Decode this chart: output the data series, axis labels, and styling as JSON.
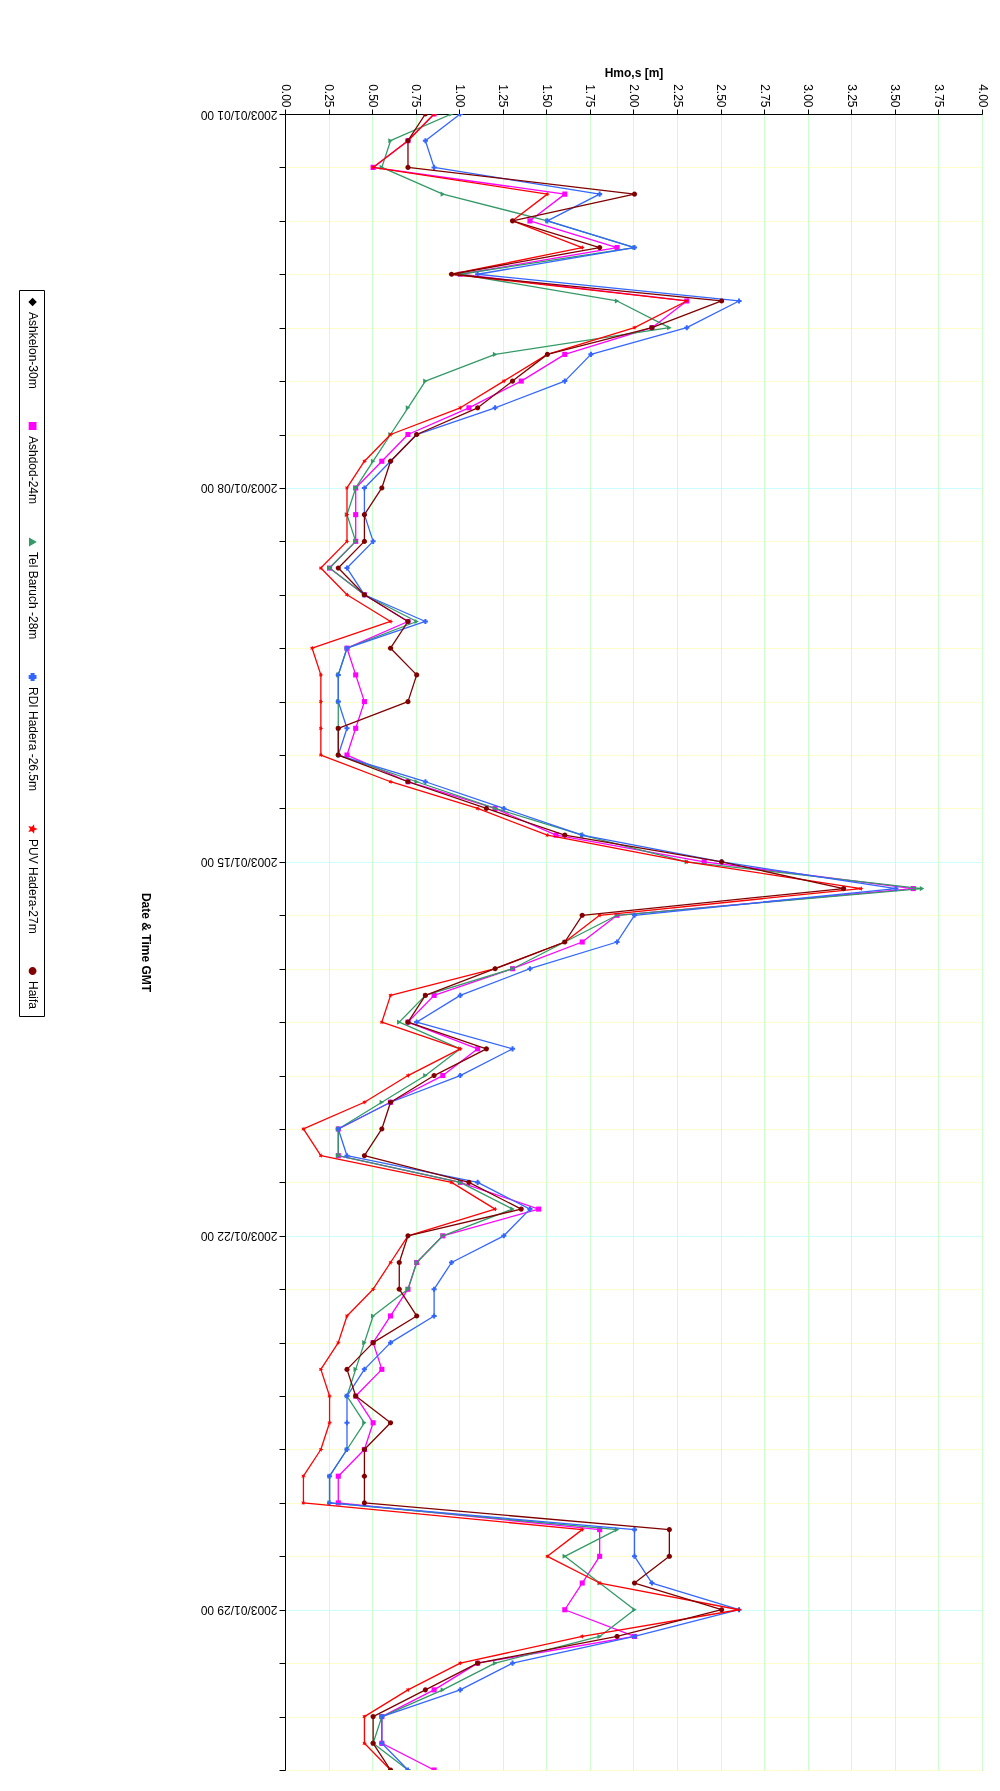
{
  "chart_data": {
    "type": "line",
    "orientation": "horizontal",
    "xlabel": "Hmo,s [m]",
    "ylabel": "Date & Time GMT",
    "x": [
      "2003-01-01T00:00",
      "2003-01-01T12:00",
      "2003-01-02T00:00",
      "2003-01-02T12:00",
      "2003-01-03T00:00",
      "2003-01-03T12:00",
      "2003-01-04T00:00",
      "2003-01-04T12:00",
      "2003-01-05T00:00",
      "2003-01-05T12:00",
      "2003-01-06T00:00",
      "2003-01-06T12:00",
      "2003-01-07T00:00",
      "2003-01-07T12:00",
      "2003-01-08T00:00",
      "2003-01-08T12:00",
      "2003-01-09T00:00",
      "2003-01-09T12:00",
      "2003-01-10T00:00",
      "2003-01-10T12:00",
      "2003-01-11T00:00",
      "2003-01-11T12:00",
      "2003-01-12T00:00",
      "2003-01-12T12:00",
      "2003-01-13T00:00",
      "2003-01-13T12:00",
      "2003-01-14T00:00",
      "2003-01-14T12:00",
      "2003-01-15T00:00",
      "2003-01-15T12:00",
      "2003-01-16T00:00",
      "2003-01-16T12:00",
      "2003-01-17T00:00",
      "2003-01-17T12:00",
      "2003-01-18T00:00",
      "2003-01-18T12:00",
      "2003-01-19T00:00",
      "2003-01-19T12:00",
      "2003-01-20T00:00",
      "2003-01-20T12:00",
      "2003-01-21T00:00",
      "2003-01-21T12:00",
      "2003-01-22T00:00",
      "2003-01-22T12:00",
      "2003-01-23T00:00",
      "2003-01-23T12:00",
      "2003-01-24T00:00",
      "2003-01-24T12:00",
      "2003-01-25T00:00",
      "2003-01-25T12:00",
      "2003-01-26T00:00",
      "2003-01-26T12:00",
      "2003-01-27T00:00",
      "2003-01-27T12:00",
      "2003-01-28T00:00",
      "2003-01-28T12:00",
      "2003-01-29T00:00",
      "2003-01-29T12:00",
      "2003-01-30T00:00",
      "2003-01-30T12:00",
      "2003-01-31T00:00",
      "2003-01-31T12:00",
      "2003-02-01T00:00"
    ],
    "series": [
      {
        "name": "Ashkelon-30m",
        "color": "#000000",
        "marker": "diamond",
        "values": [
          null,
          null,
          null,
          null,
          null,
          null,
          null,
          null,
          null,
          null,
          null,
          null,
          null,
          null,
          null,
          null,
          null,
          null,
          null,
          null,
          null,
          null,
          null,
          null,
          null,
          null,
          null,
          null,
          null,
          null,
          null,
          null,
          null,
          null,
          null,
          null,
          null,
          null,
          null,
          null,
          null,
          null,
          null,
          null,
          null,
          null,
          null,
          null,
          null,
          null,
          null,
          null,
          null,
          null,
          null,
          null,
          null,
          null,
          null,
          null,
          null,
          null,
          null
        ]
      },
      {
        "name": "Ashdod-24m",
        "color": "#ff00ff",
        "marker": "square",
        "values": [
          0.85,
          0.7,
          0.5,
          1.6,
          1.4,
          1.9,
          1.0,
          2.3,
          2.1,
          1.6,
          1.35,
          1.05,
          0.7,
          0.55,
          0.4,
          0.4,
          0.4,
          0.25,
          0.45,
          0.7,
          0.35,
          0.4,
          0.45,
          0.4,
          0.35,
          0.7,
          1.2,
          1.55,
          2.4,
          3.6,
          1.9,
          1.7,
          1.3,
          0.85,
          0.7,
          1.1,
          0.9,
          0.6,
          0.3,
          0.3,
          1.0,
          1.45,
          0.9,
          0.75,
          0.7,
          0.6,
          0.5,
          0.55,
          0.4,
          0.5,
          0.45,
          0.3,
          0.3,
          1.8,
          1.8,
          1.7,
          1.6,
          2.0,
          1.1,
          0.85,
          0.55,
          0.55,
          0.85
        ]
      },
      {
        "name": "Tel Baruch -28m",
        "color": "#339966",
        "marker": "triangle",
        "values": [
          0.95,
          0.6,
          0.55,
          0.9,
          1.5,
          2.0,
          1.0,
          1.9,
          2.2,
          1.2,
          0.8,
          0.7,
          0.6,
          0.5,
          0.4,
          0.35,
          0.4,
          0.25,
          0.45,
          0.75,
          0.35,
          0.3,
          0.3,
          0.3,
          0.3,
          0.75,
          1.2,
          1.7,
          2.3,
          3.65,
          1.9,
          1.6,
          1.3,
          0.8,
          0.65,
          1.0,
          0.8,
          0.55,
          0.3,
          0.3,
          1.0,
          1.3,
          0.9,
          0.75,
          0.7,
          0.5,
          0.45,
          0.4,
          0.35,
          0.45,
          0.35,
          0.25,
          0.25,
          1.9,
          1.6,
          1.8,
          2.0,
          1.8,
          1.2,
          0.9,
          0.55,
          0.5,
          0.7
        ]
      },
      {
        "name": "RDI Hadera -26.5m",
        "color": "#3366ff",
        "marker": "cross",
        "values": [
          1.0,
          0.8,
          0.85,
          1.8,
          1.5,
          2.0,
          1.1,
          2.6,
          2.3,
          1.75,
          1.6,
          1.2,
          0.75,
          0.6,
          0.45,
          0.45,
          0.5,
          0.35,
          0.45,
          0.8,
          0.35,
          0.3,
          0.3,
          0.35,
          0.3,
          0.8,
          1.25,
          1.7,
          2.5,
          3.5,
          2.0,
          1.9,
          1.4,
          1.0,
          0.75,
          1.3,
          1.0,
          0.6,
          0.3,
          0.35,
          1.1,
          1.4,
          1.25,
          0.95,
          0.85,
          0.85,
          0.6,
          0.45,
          0.35,
          0.35,
          0.35,
          0.25,
          0.25,
          2.0,
          2.0,
          2.1,
          2.6,
          2.0,
          1.3,
          1.0,
          0.55,
          0.55,
          0.7
        ]
      },
      {
        "name": "PUV Hadera-27m",
        "color": "#ff0000",
        "marker": "star",
        "values": [
          0.85,
          0.7,
          0.5,
          1.5,
          1.3,
          1.7,
          0.95,
          2.3,
          2.0,
          1.5,
          1.25,
          1.0,
          0.6,
          0.45,
          0.35,
          0.35,
          0.35,
          0.2,
          0.35,
          0.6,
          0.15,
          0.2,
          0.2,
          0.2,
          0.2,
          0.6,
          1.1,
          1.5,
          2.3,
          3.3,
          1.8,
          1.6,
          1.2,
          0.6,
          0.55,
          1.0,
          0.7,
          0.45,
          0.1,
          0.2,
          0.95,
          1.2,
          0.7,
          0.6,
          0.5,
          0.35,
          0.3,
          0.2,
          0.25,
          0.25,
          0.2,
          0.1,
          0.1,
          1.7,
          1.5,
          1.8,
          2.6,
          1.7,
          1.0,
          0.7,
          0.45,
          0.45,
          0.6
        ]
      },
      {
        "name": "Haifa",
        "color": "#800000",
        "marker": "circle",
        "values": [
          0.8,
          0.7,
          0.7,
          2.0,
          1.3,
          1.8,
          0.95,
          2.5,
          2.1,
          1.5,
          1.3,
          1.1,
          0.75,
          0.6,
          0.55,
          0.45,
          0.45,
          0.3,
          0.45,
          0.7,
          0.6,
          0.75,
          0.7,
          0.3,
          0.3,
          0.7,
          1.15,
          1.6,
          2.5,
          3.2,
          1.7,
          1.6,
          1.2,
          0.8,
          0.7,
          1.15,
          0.85,
          0.6,
          0.55,
          0.45,
          1.05,
          1.35,
          0.7,
          0.65,
          0.65,
          0.75,
          0.5,
          0.35,
          0.4,
          0.6,
          0.45,
          0.45,
          0.45,
          2.2,
          2.2,
          2.0,
          2.5,
          1.9,
          1.1,
          0.8,
          0.5,
          0.5,
          0.6
        ]
      }
    ],
    "ylim": [
      "2003-02-01T00:00",
      "2003-01-01T00:00"
    ],
    "yticks": [
      {
        "value": "2003-01-01T00:00",
        "label": "2003/01/01 00"
      },
      {
        "value": "2003-01-02T00:00",
        "label": null
      },
      {
        "value": "2003-01-03T00:00",
        "label": null
      },
      {
        "value": "2003-01-04T00:00",
        "label": null
      },
      {
        "value": "2003-01-05T00:00",
        "label": null
      },
      {
        "value": "2003-01-06T00:00",
        "label": null
      },
      {
        "value": "2003-01-07T00:00",
        "label": null
      },
      {
        "value": "2003-01-08T00:00",
        "label": "2003/01/08 00"
      },
      {
        "value": "2003-01-09T00:00",
        "label": null
      },
      {
        "value": "2003-01-10T00:00",
        "label": null
      },
      {
        "value": "2003-01-11T00:00",
        "label": null
      },
      {
        "value": "2003-01-12T00:00",
        "label": null
      },
      {
        "value": "2003-01-13T00:00",
        "label": null
      },
      {
        "value": "2003-01-14T00:00",
        "label": null
      },
      {
        "value": "2003-01-15T00:00",
        "label": "2003/01/15 00"
      },
      {
        "value": "2003-01-16T00:00",
        "label": null
      },
      {
        "value": "2003-01-17T00:00",
        "label": null
      },
      {
        "value": "2003-01-18T00:00",
        "label": null
      },
      {
        "value": "2003-01-19T00:00",
        "label": null
      },
      {
        "value": "2003-01-20T00:00",
        "label": null
      },
      {
        "value": "2003-01-21T00:00",
        "label": null
      },
      {
        "value": "2003-01-22T00:00",
        "label": "2003/01/22 00"
      },
      {
        "value": "2003-01-23T00:00",
        "label": null
      },
      {
        "value": "2003-01-24T00:00",
        "label": null
      },
      {
        "value": "2003-01-25T00:00",
        "label": null
      },
      {
        "value": "2003-01-26T00:00",
        "label": null
      },
      {
        "value": "2003-01-27T00:00",
        "label": null
      },
      {
        "value": "2003-01-28T00:00",
        "label": null
      },
      {
        "value": "2003-01-29T00:00",
        "label": "2003/01/29 00"
      },
      {
        "value": "2003-01-30T00:00",
        "label": null
      },
      {
        "value": "2003-01-31T00:00",
        "label": null
      },
      {
        "value": "2003-02-01T00:00",
        "label": null
      }
    ],
    "xlim": [
      0,
      4
    ],
    "xticks": [
      {
        "value": 0,
        "label": "0.00"
      },
      {
        "value": 0.25,
        "label": "0.25"
      },
      {
        "value": 0.5,
        "label": "0.50"
      },
      {
        "value": 0.75,
        "label": "0.75"
      },
      {
        "value": 1,
        "label": "1.00"
      },
      {
        "value": 1.25,
        "label": "1.25"
      },
      {
        "value": 1.5,
        "label": "1.50"
      },
      {
        "value": 1.75,
        "label": "1.75"
      },
      {
        "value": 2,
        "label": "2.00"
      },
      {
        "value": 2.25,
        "label": "2.25"
      },
      {
        "value": 2.5,
        "label": "2.50"
      },
      {
        "value": 2.75,
        "label": "2.75"
      },
      {
        "value": 3,
        "label": "3.00"
      },
      {
        "value": 3.25,
        "label": "3.25"
      },
      {
        "value": 3.5,
        "label": "3.50"
      },
      {
        "value": 3.75,
        "label": "3.75"
      },
      {
        "value": 4,
        "label": "4.00"
      }
    ],
    "grid": true,
    "legend": "left",
    "line_style": "solid"
  }
}
